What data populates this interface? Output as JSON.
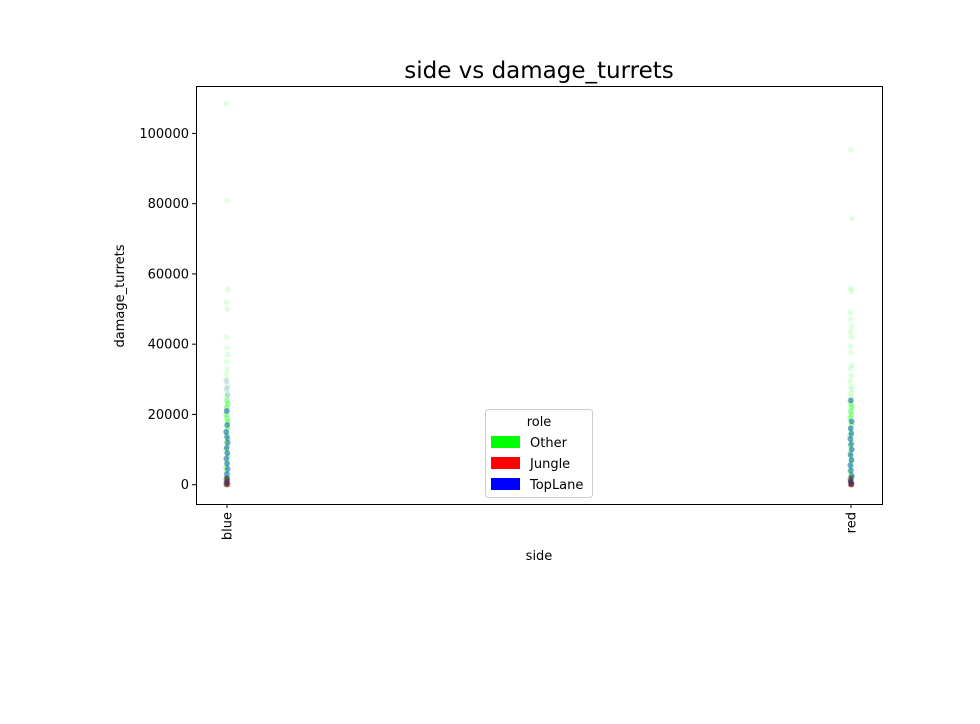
{
  "chart_data": {
    "type": "scatter",
    "title": "side vs damage_turrets",
    "xlabel": "side",
    "ylabel": "damage_turrets",
    "categories": [
      "blue",
      "red"
    ],
    "ylim": [
      -5500,
      113500
    ],
    "yticks": [
      0,
      20000,
      40000,
      60000,
      80000,
      100000
    ],
    "ytick_labels": [
      "0",
      "20000",
      "40000",
      "60000",
      "80000",
      "100000"
    ],
    "grid": false,
    "legend": {
      "title": "role",
      "placement": "lower-center",
      "entries": [
        {
          "label": "Other",
          "color": "#00ff00"
        },
        {
          "label": "Jungle",
          "color": "#ff0000"
        },
        {
          "label": "TopLane",
          "color": "#0000ff"
        }
      ]
    },
    "series": [
      {
        "name": "Other",
        "color": "#00ff00",
        "points": [
          {
            "x": "blue",
            "y": 108500
          },
          {
            "x": "blue",
            "y": 80800
          },
          {
            "x": "blue",
            "y": 55500
          },
          {
            "x": "blue",
            "y": 52000
          },
          {
            "x": "blue",
            "y": 50000
          },
          {
            "x": "blue",
            "y": 42000
          },
          {
            "x": "blue",
            "y": 39000
          },
          {
            "x": "blue",
            "y": 37000
          },
          {
            "x": "blue",
            "y": 35000
          },
          {
            "x": "blue",
            "y": 33000
          },
          {
            "x": "blue",
            "y": 31500
          },
          {
            "x": "blue",
            "y": 30000
          },
          {
            "x": "blue",
            "y": 28500
          },
          {
            "x": "blue",
            "y": 27000
          },
          {
            "x": "blue",
            "y": 26000
          },
          {
            "x": "blue",
            "y": 25000
          },
          {
            "x": "blue",
            "y": 24000
          },
          {
            "x": "blue",
            "y": 23000
          },
          {
            "x": "blue",
            "y": 22000
          },
          {
            "x": "blue",
            "y": 21000
          },
          {
            "x": "blue",
            "y": 20000
          },
          {
            "x": "blue",
            "y": 19000
          },
          {
            "x": "blue",
            "y": 18000
          },
          {
            "x": "blue",
            "y": 17000
          },
          {
            "x": "blue",
            "y": 16000
          },
          {
            "x": "blue",
            "y": 15000
          },
          {
            "x": "blue",
            "y": 14000
          },
          {
            "x": "blue",
            "y": 13000
          },
          {
            "x": "blue",
            "y": 12000
          },
          {
            "x": "blue",
            "y": 11000
          },
          {
            "x": "blue",
            "y": 10000
          },
          {
            "x": "blue",
            "y": 9000
          },
          {
            "x": "blue",
            "y": 8000
          },
          {
            "x": "blue",
            "y": 7000
          },
          {
            "x": "blue",
            "y": 6000
          },
          {
            "x": "blue",
            "y": 5000
          },
          {
            "x": "blue",
            "y": 4000
          },
          {
            "x": "blue",
            "y": 3000
          },
          {
            "x": "blue",
            "y": 2000
          },
          {
            "x": "blue",
            "y": 1000
          },
          {
            "x": "blue",
            "y": 0
          },
          {
            "x": "red",
            "y": 95500
          },
          {
            "x": "red",
            "y": 75800
          },
          {
            "x": "red",
            "y": 55800
          },
          {
            "x": "red",
            "y": 55000
          },
          {
            "x": "red",
            "y": 49000
          },
          {
            "x": "red",
            "y": 47000
          },
          {
            "x": "red",
            "y": 45000
          },
          {
            "x": "red",
            "y": 43500
          },
          {
            "x": "red",
            "y": 42000
          },
          {
            "x": "red",
            "y": 39500
          },
          {
            "x": "red",
            "y": 37500
          },
          {
            "x": "red",
            "y": 34000
          },
          {
            "x": "red",
            "y": 33000
          },
          {
            "x": "red",
            "y": 31000
          },
          {
            "x": "red",
            "y": 29500
          },
          {
            "x": "red",
            "y": 28000
          },
          {
            "x": "red",
            "y": 27000
          },
          {
            "x": "red",
            "y": 26000
          },
          {
            "x": "red",
            "y": 25000
          },
          {
            "x": "red",
            "y": 24000
          },
          {
            "x": "red",
            "y": 23000
          },
          {
            "x": "red",
            "y": 22000
          },
          {
            "x": "red",
            "y": 21000
          },
          {
            "x": "red",
            "y": 20000
          },
          {
            "x": "red",
            "y": 19000
          },
          {
            "x": "red",
            "y": 18000
          },
          {
            "x": "red",
            "y": 17000
          },
          {
            "x": "red",
            "y": 16000
          },
          {
            "x": "red",
            "y": 15000
          },
          {
            "x": "red",
            "y": 14000
          },
          {
            "x": "red",
            "y": 13000
          },
          {
            "x": "red",
            "y": 12000
          },
          {
            "x": "red",
            "y": 11000
          },
          {
            "x": "red",
            "y": 10000
          },
          {
            "x": "red",
            "y": 9000
          },
          {
            "x": "red",
            "y": 8000
          },
          {
            "x": "red",
            "y": 7000
          },
          {
            "x": "red",
            "y": 6000
          },
          {
            "x": "red",
            "y": 5000
          },
          {
            "x": "red",
            "y": 4000
          },
          {
            "x": "red",
            "y": 3000
          },
          {
            "x": "red",
            "y": 2000
          },
          {
            "x": "red",
            "y": 1000
          },
          {
            "x": "red",
            "y": 0
          }
        ]
      },
      {
        "name": "Jungle",
        "color": "#ff0000",
        "points": [
          {
            "x": "blue",
            "y": 1500
          },
          {
            "x": "blue",
            "y": 800
          },
          {
            "x": "blue",
            "y": 300
          },
          {
            "x": "blue",
            "y": 100
          },
          {
            "x": "blue",
            "y": 0
          },
          {
            "x": "red",
            "y": 1500
          },
          {
            "x": "red",
            "y": 800
          },
          {
            "x": "red",
            "y": 300
          },
          {
            "x": "red",
            "y": 100
          },
          {
            "x": "red",
            "y": 0
          }
        ]
      },
      {
        "name": "TopLane",
        "color": "#0000ff",
        "points": [
          {
            "x": "blue",
            "y": 29500
          },
          {
            "x": "blue",
            "y": 27500
          },
          {
            "x": "blue",
            "y": 25500
          },
          {
            "x": "blue",
            "y": 21000
          },
          {
            "x": "blue",
            "y": 17000
          },
          {
            "x": "blue",
            "y": 15000
          },
          {
            "x": "blue",
            "y": 13500
          },
          {
            "x": "blue",
            "y": 12000
          },
          {
            "x": "blue",
            "y": 10500
          },
          {
            "x": "blue",
            "y": 9000
          },
          {
            "x": "blue",
            "y": 7500
          },
          {
            "x": "blue",
            "y": 6000
          },
          {
            "x": "blue",
            "y": 4500
          },
          {
            "x": "blue",
            "y": 3000
          },
          {
            "x": "blue",
            "y": 1500
          },
          {
            "x": "blue",
            "y": 500
          },
          {
            "x": "red",
            "y": 24000
          },
          {
            "x": "red",
            "y": 18000
          },
          {
            "x": "red",
            "y": 16000
          },
          {
            "x": "red",
            "y": 14500
          },
          {
            "x": "red",
            "y": 13000
          },
          {
            "x": "red",
            "y": 11500
          },
          {
            "x": "red",
            "y": 10000
          },
          {
            "x": "red",
            "y": 8500
          },
          {
            "x": "red",
            "y": 7000
          },
          {
            "x": "red",
            "y": 5500
          },
          {
            "x": "red",
            "y": 4000
          },
          {
            "x": "red",
            "y": 2500
          },
          {
            "x": "red",
            "y": 1000
          },
          {
            "x": "red",
            "y": 300
          }
        ]
      }
    ]
  }
}
